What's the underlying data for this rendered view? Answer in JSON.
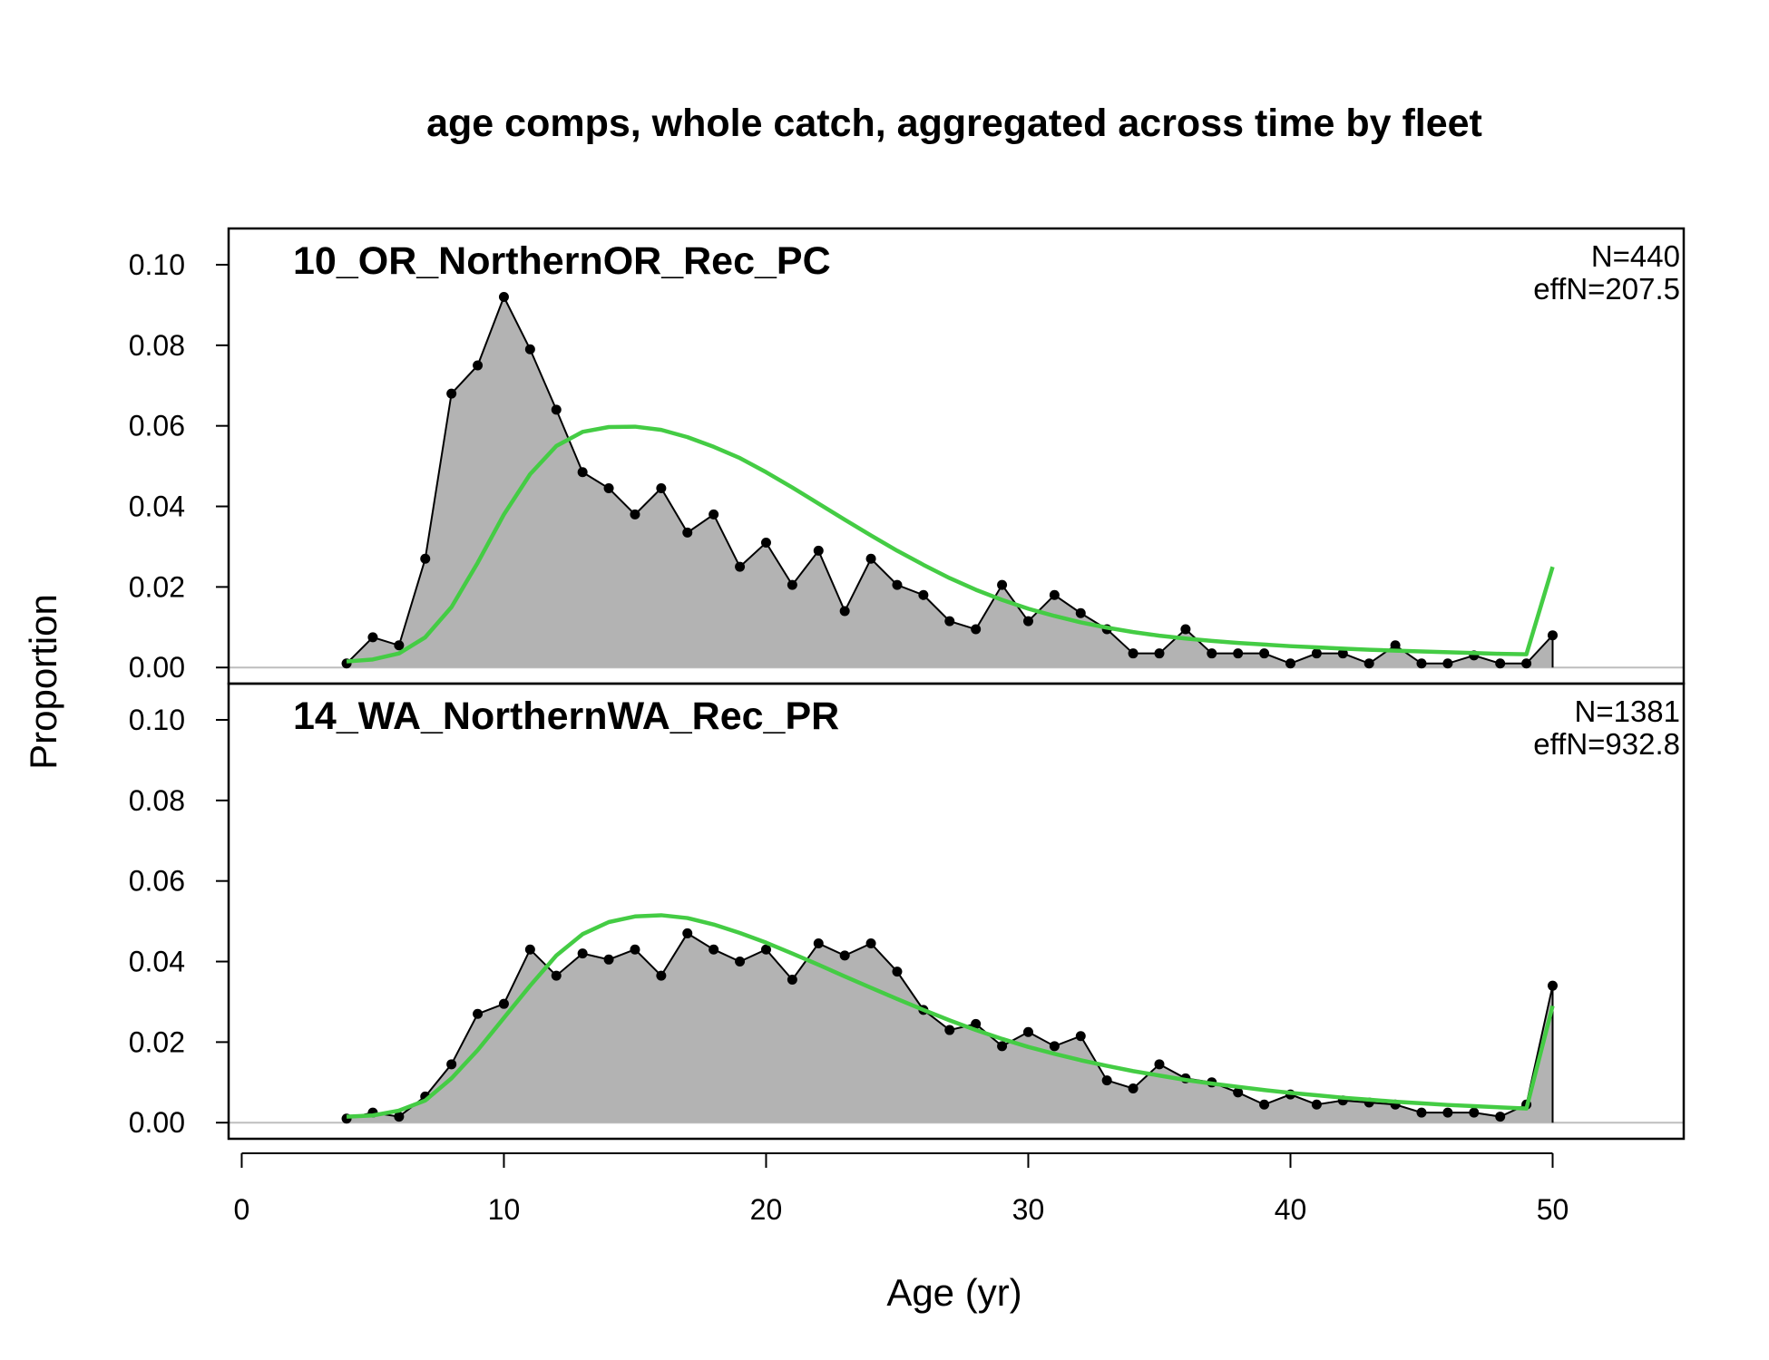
{
  "chart_data": {
    "type": "area",
    "title": "age comps, whole catch, aggregated across time by fleet",
    "xlabel": "Age (yr)",
    "ylabel": "Proportion",
    "xlim": [
      -0.5,
      55
    ],
    "ylim": [
      -0.004,
      0.109
    ],
    "x_ticks": [
      "0",
      "10",
      "20",
      "30",
      "40",
      "50"
    ],
    "y_ticks": [
      "0.00",
      "0.02",
      "0.04",
      "0.06",
      "0.08",
      "0.10"
    ],
    "colors": {
      "observed_fill": "#b3b3b3",
      "observed_line": "#000000",
      "expected_line": "#44cc44",
      "zero_line": "#bebebe"
    },
    "panels": [
      {
        "name": "10_OR_NorthernOR_Rec_PC",
        "n_label": "N=440",
        "effn_label": "effN=207.5",
        "ages": [
          4,
          5,
          6,
          7,
          8,
          9,
          10,
          11,
          12,
          13,
          14,
          15,
          16,
          17,
          18,
          19,
          20,
          21,
          22,
          23,
          24,
          25,
          26,
          27,
          28,
          29,
          30,
          31,
          32,
          33,
          34,
          35,
          36,
          37,
          38,
          39,
          40,
          41,
          42,
          43,
          44,
          45,
          46,
          47,
          48,
          49,
          50
        ],
        "observed": [
          0.001,
          0.0075,
          0.0055,
          0.027,
          0.068,
          0.075,
          0.092,
          0.079,
          0.064,
          0.0485,
          0.0445,
          0.038,
          0.0445,
          0.0335,
          0.038,
          0.025,
          0.031,
          0.0205,
          0.029,
          0.014,
          0.027,
          0.0205,
          0.018,
          0.0115,
          0.0095,
          0.0205,
          0.0115,
          0.018,
          0.0135,
          0.0095,
          0.0035,
          0.0035,
          0.0095,
          0.0035,
          0.0035,
          0.0035,
          0.001,
          0.0035,
          0.0035,
          0.001,
          0.0055,
          0.001,
          0.001,
          0.003,
          0.001,
          0.001,
          0.008
        ],
        "expected": [
          0.0015,
          0.002,
          0.0035,
          0.0075,
          0.015,
          0.026,
          0.038,
          0.048,
          0.055,
          0.0585,
          0.0597,
          0.0598,
          0.059,
          0.0572,
          0.0548,
          0.052,
          0.0485,
          0.0447,
          0.0407,
          0.0367,
          0.0328,
          0.029,
          0.0255,
          0.0222,
          0.0193,
          0.0168,
          0.0146,
          0.0128,
          0.0112,
          0.0099,
          0.0088,
          0.0079,
          0.0072,
          0.0066,
          0.0061,
          0.0057,
          0.0053,
          0.005,
          0.0047,
          0.0044,
          0.0042,
          0.004,
          0.0038,
          0.0036,
          0.0034,
          0.0033,
          0.025
        ]
      },
      {
        "name": "14_WA_NorthernWA_Rec_PR",
        "n_label": "N=1381",
        "effn_label": "effN=932.8",
        "ages": [
          4,
          5,
          6,
          7,
          8,
          9,
          10,
          11,
          12,
          13,
          14,
          15,
          16,
          17,
          18,
          19,
          20,
          21,
          22,
          23,
          24,
          25,
          26,
          27,
          28,
          29,
          30,
          31,
          32,
          33,
          34,
          35,
          36,
          37,
          38,
          39,
          40,
          41,
          42,
          43,
          44,
          45,
          46,
          47,
          48,
          49,
          50
        ],
        "observed": [
          0.001,
          0.0025,
          0.0015,
          0.0065,
          0.0145,
          0.027,
          0.0295,
          0.043,
          0.0365,
          0.042,
          0.0405,
          0.043,
          0.0365,
          0.047,
          0.043,
          0.04,
          0.043,
          0.0355,
          0.0445,
          0.0415,
          0.0445,
          0.0375,
          0.028,
          0.023,
          0.0245,
          0.019,
          0.0225,
          0.019,
          0.0215,
          0.0105,
          0.0085,
          0.0145,
          0.011,
          0.01,
          0.0075,
          0.0045,
          0.007,
          0.0045,
          0.0055,
          0.005,
          0.0045,
          0.0025,
          0.0025,
          0.0025,
          0.0015,
          0.0045,
          0.034
        ],
        "expected": [
          0.0015,
          0.0018,
          0.003,
          0.0055,
          0.011,
          0.018,
          0.026,
          0.034,
          0.0415,
          0.0468,
          0.0498,
          0.0512,
          0.0515,
          0.0508,
          0.0492,
          0.0471,
          0.0447,
          0.042,
          0.0392,
          0.0363,
          0.0335,
          0.0307,
          0.028,
          0.0254,
          0.023,
          0.0208,
          0.0188,
          0.0171,
          0.0155,
          0.0141,
          0.0128,
          0.0117,
          0.0106,
          0.0097,
          0.0089,
          0.0081,
          0.0074,
          0.0068,
          0.0062,
          0.0057,
          0.0052,
          0.0048,
          0.0044,
          0.0041,
          0.0038,
          0.0035,
          0.029
        ]
      }
    ]
  }
}
